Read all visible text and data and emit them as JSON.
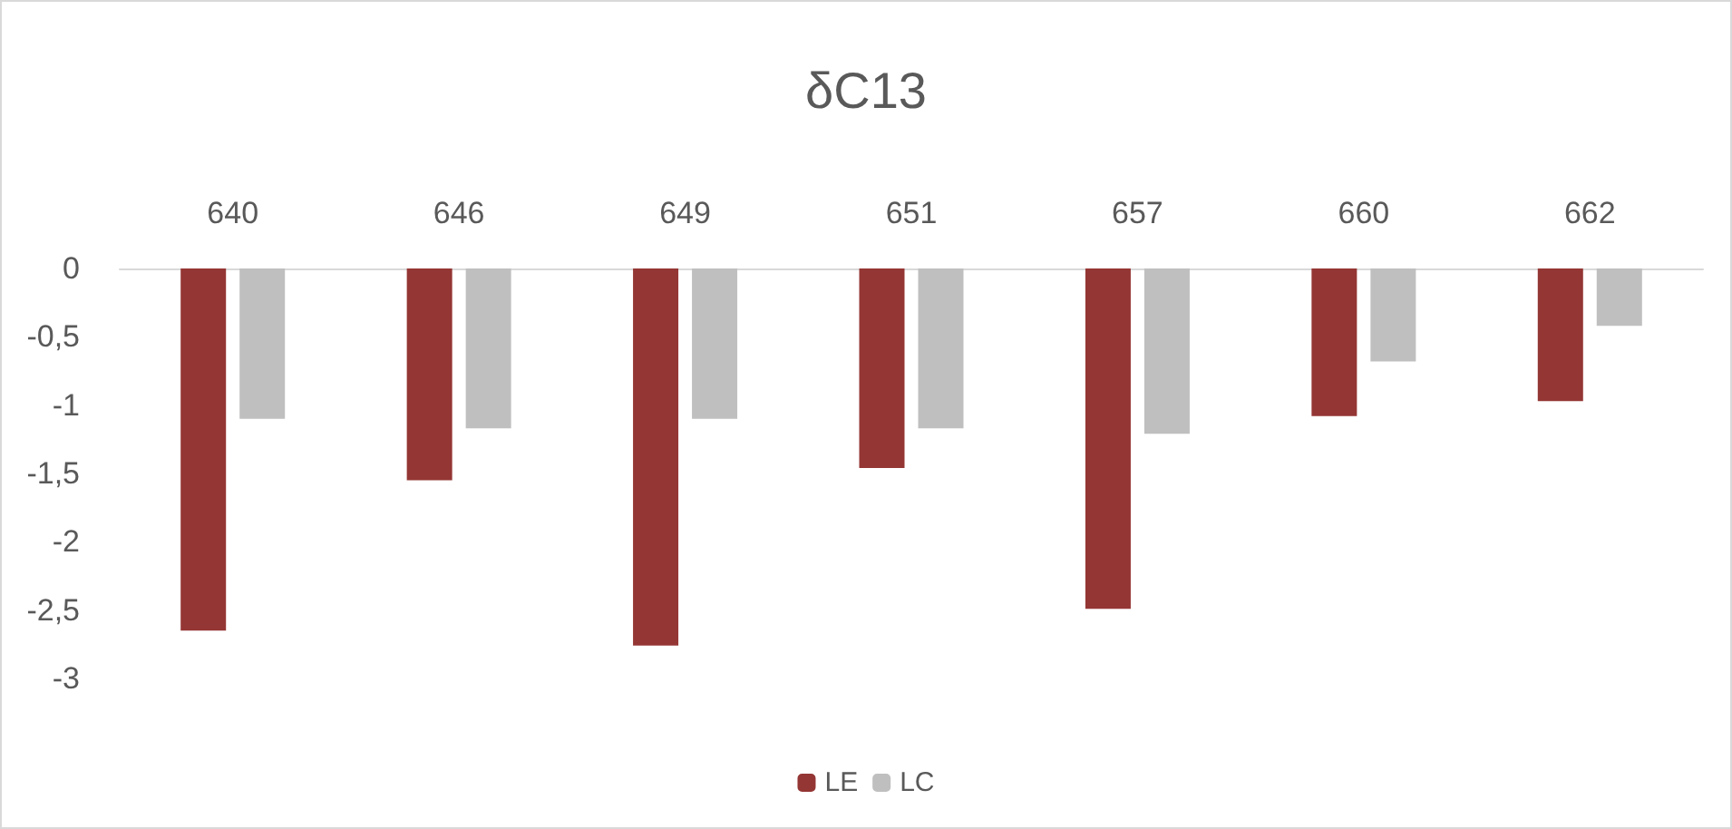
{
  "chart_data": {
    "type": "bar",
    "title": "δC13",
    "categories": [
      "640",
      "646",
      "649",
      "651",
      "657",
      "660",
      "662"
    ],
    "series": [
      {
        "name": "LE",
        "color": "#943634",
        "values": [
          -2.65,
          -1.55,
          -2.76,
          -1.46,
          -2.49,
          -1.08,
          -0.97
        ]
      },
      {
        "name": "LC",
        "color": "#bfbfbf",
        "values": [
          -1.1,
          -1.17,
          -1.1,
          -1.17,
          -1.21,
          -0.68,
          -0.42
        ]
      }
    ],
    "ylim": [
      -3,
      0
    ],
    "yticks": [
      0,
      {
        "value": -0.5,
        "label": "-0,5"
      },
      -1,
      {
        "value": -1.5,
        "label": "-1,5"
      },
      -2,
      {
        "value": -2.5,
        "label": "-2,5"
      },
      -3
    ],
    "grid": false,
    "legend": "bottom"
  }
}
